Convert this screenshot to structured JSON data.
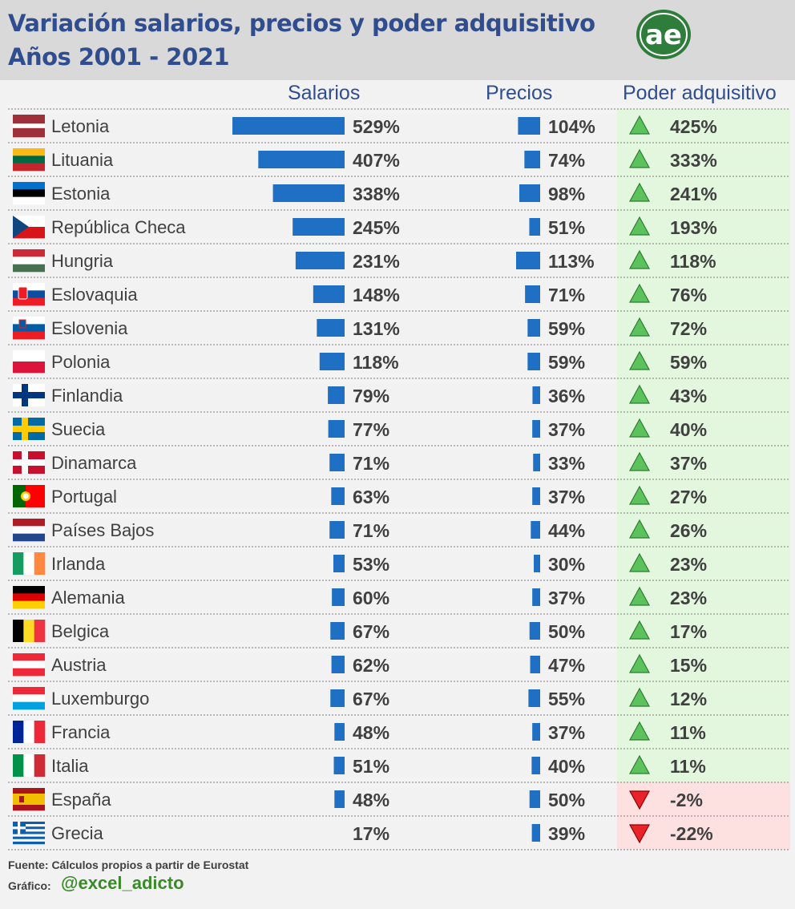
{
  "header": {
    "title": "Variación salarios, precios y poder adquisitivo",
    "subtitle": "Años 2001 - 2021",
    "logo_text": "ae"
  },
  "columns": {
    "salarios": "Salarios",
    "precios": "Precios",
    "poder": "Poder adquisitivo"
  },
  "footer": {
    "source": "Fuente: Cálculos propios a partir de Eurostat",
    "grafico": "Gráfico:",
    "handle": "@excel_adicto"
  },
  "colors": {
    "bar": "#1f6fc4",
    "title": "#2f4d8f",
    "text": "#404040",
    "positive_bg": "#e2f7dd",
    "negative_bg": "#fde0e0",
    "up_arrow": "#5cc25c",
    "down_arrow": "#e8242a",
    "handle": "#3b8a2a"
  },
  "chart_data": {
    "type": "table",
    "columns": [
      "Salarios",
      "Precios",
      "Poder adquisitivo"
    ],
    "rows": [
      {
        "country": "Letonia",
        "flag": "latvia",
        "salarios": 529,
        "precios": 104,
        "poder": 425
      },
      {
        "country": "Lituania",
        "flag": "lithuania",
        "salarios": 407,
        "precios": 74,
        "poder": 333
      },
      {
        "country": "Estonia",
        "flag": "estonia",
        "salarios": 338,
        "precios": 98,
        "poder": 241
      },
      {
        "country": "República Checa",
        "flag": "czech",
        "salarios": 245,
        "precios": 51,
        "poder": 193
      },
      {
        "country": "Hungria",
        "flag": "hungary",
        "salarios": 231,
        "precios": 113,
        "poder": 118
      },
      {
        "country": "Eslovaquia",
        "flag": "slovakia",
        "salarios": 148,
        "precios": 71,
        "poder": 76
      },
      {
        "country": "Eslovenia",
        "flag": "slovenia",
        "salarios": 131,
        "precios": 59,
        "poder": 72
      },
      {
        "country": "Polonia",
        "flag": "poland",
        "salarios": 118,
        "precios": 59,
        "poder": 59
      },
      {
        "country": "Finlandia",
        "flag": "finland",
        "salarios": 79,
        "precios": 36,
        "poder": 43
      },
      {
        "country": "Suecia",
        "flag": "sweden",
        "salarios": 77,
        "precios": 37,
        "poder": 40
      },
      {
        "country": "Dinamarca",
        "flag": "denmark",
        "salarios": 71,
        "precios": 33,
        "poder": 37
      },
      {
        "country": "Portugal",
        "flag": "portugal",
        "salarios": 63,
        "precios": 37,
        "poder": 27
      },
      {
        "country": "Países Bajos",
        "flag": "netherlands",
        "salarios": 71,
        "precios": 44,
        "poder": 26
      },
      {
        "country": "Irlanda",
        "flag": "ireland",
        "salarios": 53,
        "precios": 30,
        "poder": 23
      },
      {
        "country": "Alemania",
        "flag": "germany",
        "salarios": 60,
        "precios": 37,
        "poder": 23
      },
      {
        "country": "Belgica",
        "flag": "belgium",
        "salarios": 67,
        "precios": 50,
        "poder": 17
      },
      {
        "country": "Austria",
        "flag": "austria",
        "salarios": 62,
        "precios": 47,
        "poder": 15
      },
      {
        "country": "Luxemburgo",
        "flag": "luxembourg",
        "salarios": 67,
        "precios": 55,
        "poder": 12
      },
      {
        "country": "Francia",
        "flag": "france",
        "salarios": 48,
        "precios": 37,
        "poder": 11
      },
      {
        "country": "Italia",
        "flag": "italy",
        "salarios": 51,
        "precios": 40,
        "poder": 11
      },
      {
        "country": "España",
        "flag": "spain",
        "salarios": 48,
        "precios": 50,
        "poder": -2
      },
      {
        "country": "Grecia",
        "flag": "greece",
        "salarios": 17,
        "precios": 39,
        "poder": -22
      }
    ]
  }
}
